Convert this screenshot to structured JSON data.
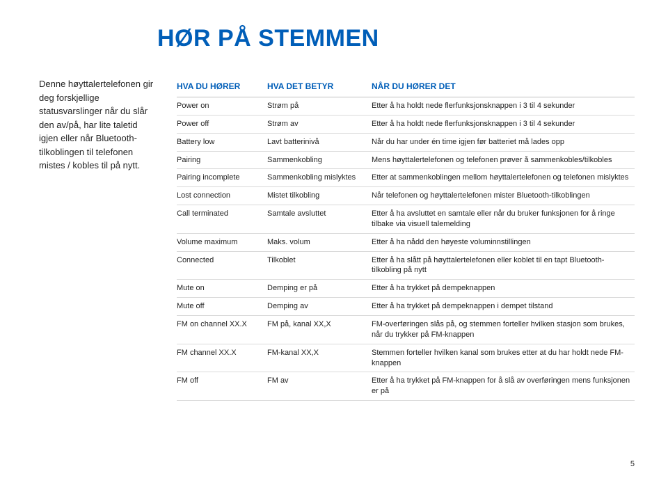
{
  "title": "HØR PÅ STEMMEN",
  "intro": "Denne høyttalertelefonen gir deg forskjellige statusvarslinger når du slår den av/på, har lite taletid igjen eller når Bluetooth-tilkoblingen til telefonen mistes / kobles til på nytt.",
  "headers": {
    "c1": "HVA DU HØRER",
    "c2": "HVA DET BETYR",
    "c3": "NÅR DU HØRER DET"
  },
  "rows": [
    {
      "c1": "Power on",
      "c2": "Strøm på",
      "c3": "Etter å ha holdt nede flerfunksjonsknappen i 3 til 4 sekunder"
    },
    {
      "c1": "Power off",
      "c2": "Strøm av",
      "c3": "Etter å ha holdt nede flerfunksjonsknappen i 3 til 4 sekunder"
    },
    {
      "c1": "Battery low",
      "c2": "Lavt batterinivå",
      "c3": "Når du har under én time igjen før batteriet må lades opp"
    },
    {
      "c1": "Pairing",
      "c2": "Sammenkobling",
      "c3": "Mens høyttalertelefonen og telefonen prøver å sammenkobles/tilkobles"
    },
    {
      "c1": "Pairing incomplete",
      "c2": "Sammenkobling mislyktes",
      "c3": "Etter at sammenkoblingen mellom høyttalertelefonen og telefonen mislyktes"
    },
    {
      "c1": "Lost connection",
      "c2": "Mistet tilkobling",
      "c3": "Når telefonen og høyttalertelefonen mister Bluetooth-tilkoblingen"
    },
    {
      "c1": "Call terminated",
      "c2": "Samtale avsluttet",
      "c3": "Etter å ha avsluttet en samtale eller når du bruker funksjonen for å ringe tilbake via visuell talemelding"
    },
    {
      "c1": "Volume maximum",
      "c2": "Maks. volum",
      "c3": "Etter å ha nådd den høyeste voluminnstillingen"
    },
    {
      "c1": "Connected",
      "c2": "Tilkoblet",
      "c3": "Etter å ha slått på høyttalertelefonen eller koblet til en tapt Bluetooth-tilkobling på nytt"
    },
    {
      "c1": "Mute on",
      "c2": "Demping er på",
      "c3": "Etter å ha trykket på dempeknappen"
    },
    {
      "c1": "Mute off",
      "c2": "Demping av",
      "c3": "Etter å ha trykket på dempeknappen i dempet tilstand"
    },
    {
      "c1": "FM on channel XX.X",
      "c2": "FM på, kanal XX,X",
      "c3": "FM-overføringen slås på, og stemmen forteller hvilken stasjon som brukes, når du trykker på FM-knappen"
    },
    {
      "c1": "FM channel XX.X",
      "c2": "FM-kanal XX,X",
      "c3": "Stemmen forteller hvilken kanal som brukes etter at du har holdt nede FM-knappen"
    },
    {
      "c1": "FM off",
      "c2": "FM av",
      "c3": "Etter å ha trykket på FM-knappen for å slå av overføringen mens funksjonen er på"
    }
  ],
  "pagenum": "5",
  "colors": {
    "brand": "#005eb8",
    "text": "#222222",
    "border_header": "#bfbfbf",
    "border_row": "#d9d9d9",
    "background": "#ffffff"
  }
}
